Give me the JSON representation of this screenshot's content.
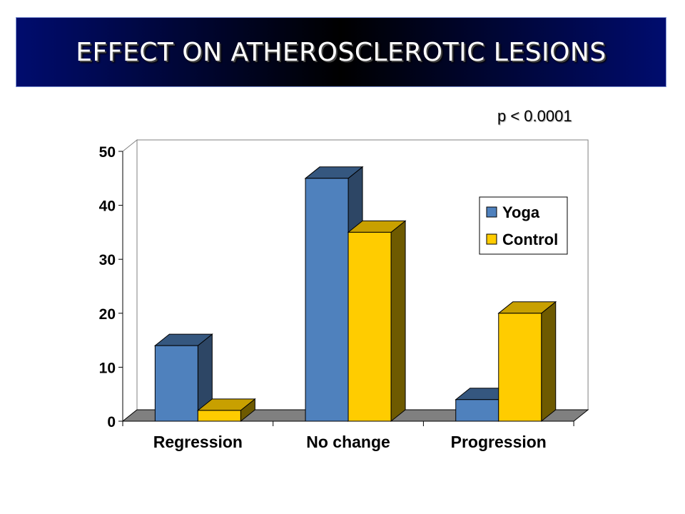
{
  "slide": {
    "title": "EFFECT ON ATHEROSCLEROTIC LESIONS",
    "annotation": "p < 0.0001"
  },
  "chart_data": {
    "type": "bar",
    "title": "",
    "xlabel": "",
    "ylabel": "",
    "categories": [
      "Regression",
      "No change",
      "Progression"
    ],
    "series": [
      {
        "name": "Yoga",
        "values": [
          14,
          45,
          4
        ],
        "color": "#4f81bd",
        "side_color": "#2d4665",
        "top_color": "#35577f"
      },
      {
        "name": "Control",
        "values": [
          2,
          35,
          20
        ],
        "color": "#ffcc00",
        "side_color": "#6e5a00",
        "top_color": "#c8a000"
      }
    ],
    "ylim": [
      0,
      50
    ],
    "yticks": [
      "0",
      "10",
      "20",
      "30",
      "40",
      "50"
    ],
    "grid": false,
    "legend": "right",
    "style": "3d-clustered-column"
  }
}
